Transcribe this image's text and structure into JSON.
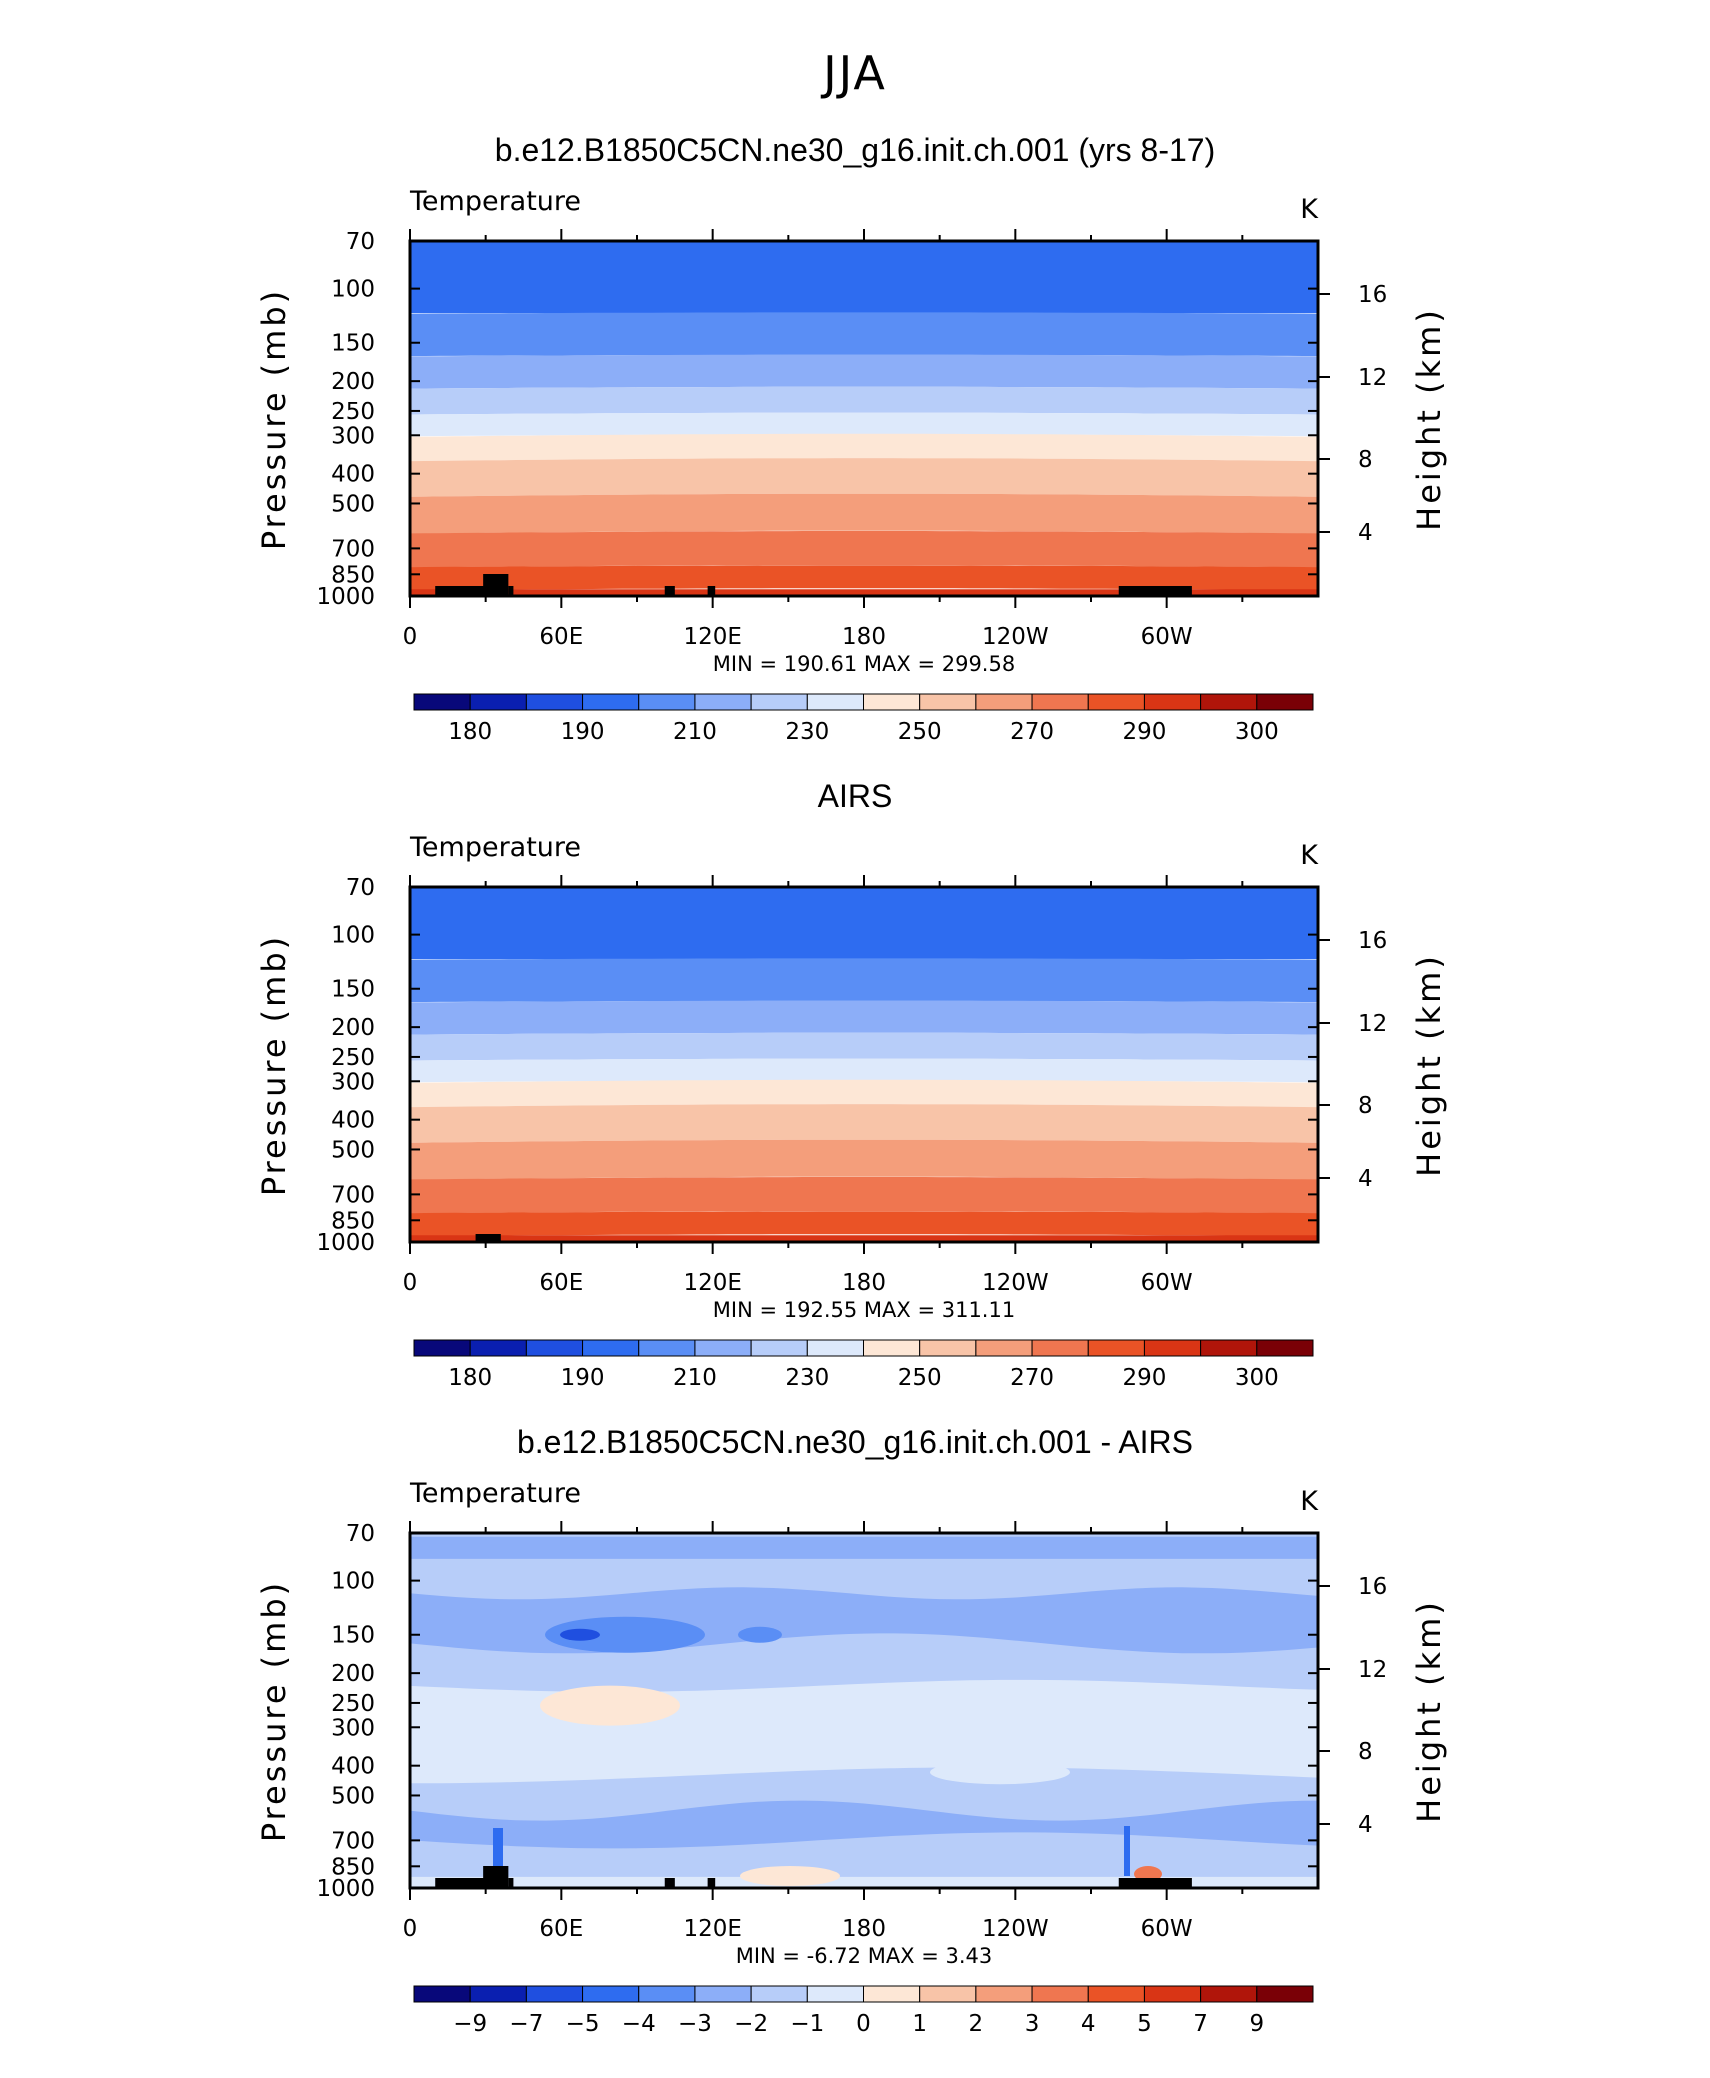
{
  "page_title": "JJA",
  "chart_data": [
    {
      "type": "heatmap",
      "title": "b.e12.B1850C5CN.ne30_g16.init.ch.001 (yrs 8-17)",
      "variable": "Temperature",
      "units": "K",
      "ylabel": "Pressure (mb)",
      "y2label": "Height (km)",
      "xlabel": "",
      "x_tick_labels": [
        "0",
        "60E",
        "120E",
        "180",
        "120W",
        "60W"
      ],
      "y_tick_labels": [
        "70",
        "100",
        "150",
        "200",
        "250",
        "300",
        "400",
        "500",
        "700",
        "850",
        "1000"
      ],
      "y2_tick_labels": [
        "16",
        "12",
        "8",
        "4"
      ],
      "y_scale": "log",
      "ylim": [
        1000,
        70
      ],
      "xlim": [
        0,
        360
      ],
      "min_max_text": "MIN =  190.61   MAX =  299.58",
      "min": 190.61,
      "max": 299.58,
      "colorbar_labels": [
        "180",
        "190",
        "210",
        "230",
        "250",
        "270",
        "290",
        "300"
      ],
      "profile_levels_mb": [
        70,
        150,
        200,
        250,
        300,
        400,
        500,
        700,
        850,
        1000
      ],
      "profile_values": [
        205,
        215,
        225,
        238,
        250,
        262,
        270,
        280,
        290,
        297
      ]
    },
    {
      "type": "heatmap",
      "title": "AIRS",
      "variable": "Temperature",
      "units": "K",
      "ylabel": "Pressure (mb)",
      "y2label": "Height (km)",
      "xlabel": "",
      "x_tick_labels": [
        "0",
        "60E",
        "120E",
        "180",
        "120W",
        "60W"
      ],
      "y_tick_labels": [
        "70",
        "100",
        "150",
        "200",
        "250",
        "300",
        "400",
        "500",
        "700",
        "850",
        "1000"
      ],
      "y2_tick_labels": [
        "16",
        "12",
        "8",
        "4"
      ],
      "y_scale": "log",
      "ylim": [
        1000,
        70
      ],
      "xlim": [
        0,
        360
      ],
      "min_max_text": "MIN =  192.55   MAX =  311.11",
      "min": 192.55,
      "max": 311.11,
      "colorbar_labels": [
        "180",
        "190",
        "210",
        "230",
        "250",
        "270",
        "290",
        "300"
      ]
    },
    {
      "type": "heatmap",
      "title": "b.e12.B1850C5CN.ne30_g16.init.ch.001 - AIRS",
      "variable": "Temperature",
      "units": "K",
      "ylabel": "Pressure (mb)",
      "y2label": "Height (km)",
      "xlabel": "",
      "x_tick_labels": [
        "0",
        "60E",
        "120E",
        "180",
        "120W",
        "60W"
      ],
      "y_tick_labels": [
        "70",
        "100",
        "150",
        "200",
        "250",
        "300",
        "400",
        "500",
        "700",
        "850",
        "1000"
      ],
      "y2_tick_labels": [
        "16",
        "12",
        "8",
        "4"
      ],
      "y_scale": "log",
      "ylim": [
        1000,
        70
      ],
      "xlim": [
        0,
        360
      ],
      "min_max_text": "MIN =    -6.72   MAX =      3.43",
      "min": -6.72,
      "max": 3.43,
      "colorbar_labels": [
        "−9",
        "−7",
        "−5",
        "−4",
        "−3",
        "−2",
        "−1",
        "0",
        "1",
        "2",
        "3",
        "4",
        "5",
        "7",
        "9"
      ]
    }
  ],
  "colors": {
    "colorbar": [
      "#08087a",
      "#0a1fb0",
      "#1f4fe0",
      "#2e6cf0",
      "#5a8ef5",
      "#8caef8",
      "#b7cdf9",
      "#dde9fb",
      "#fde7d6",
      "#f8c4a8",
      "#f49e7b",
      "#ef7650",
      "#ea5326",
      "#d93515",
      "#b0150a",
      "#7a0006"
    ],
    "topography": "#000000"
  }
}
